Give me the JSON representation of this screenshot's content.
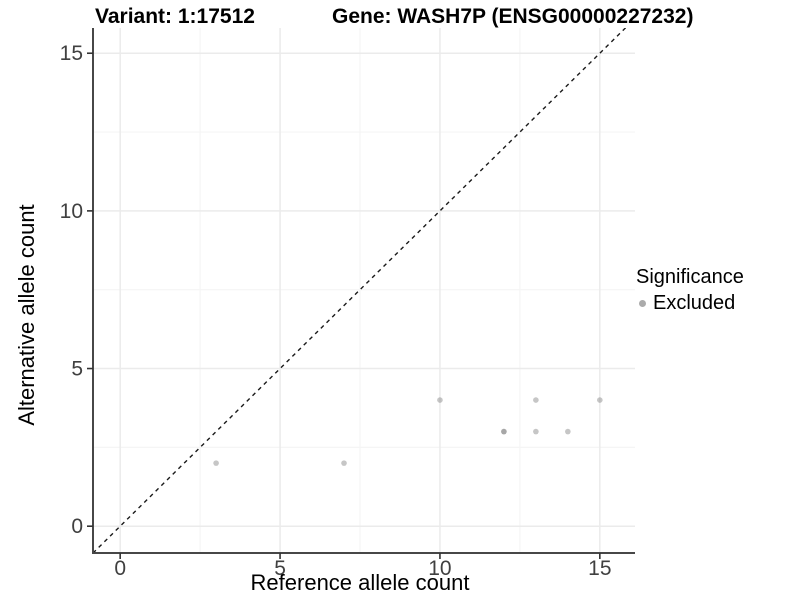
{
  "title": {
    "variant": "Variant: 1:17512",
    "gene": "Gene: WASH7P (ENSG00000227232)"
  },
  "legend": {
    "title": "Significance",
    "items": [
      {
        "label": "Excluded",
        "color": "#ababab"
      }
    ]
  },
  "colors": {
    "background": "#ffffff",
    "panel_background": "#ffffff",
    "grid_major": "#ebebeb",
    "grid_minor": "#f5f5f5",
    "axis_line": "#474747",
    "tick_mark": "#333333",
    "tick_label": "#404040",
    "axis_title": "#000000",
    "plot_title": "#000000",
    "point": "#808080",
    "identity_line": "#1a1a1a"
  },
  "chart_data": {
    "type": "scatter",
    "title": "Variant: 1:17512    Gene: WASH7P (ENSG00000227232)",
    "xlabel": "Reference allele count",
    "ylabel": "Alternative allele count",
    "xlim": [
      -0.85,
      16.1
    ],
    "ylim": [
      -0.85,
      15.8
    ],
    "x_ticks": [
      0,
      5,
      10,
      15
    ],
    "y_ticks": [
      0,
      5,
      10,
      15
    ],
    "x_minor_ticks": [
      2.5,
      7.5,
      12.5
    ],
    "y_minor_ticks": [
      2.5,
      7.5,
      12.5
    ],
    "grid": true,
    "legend_position": "right",
    "series": [
      {
        "name": "Excluded",
        "point_alpha": 0.45,
        "points": [
          [
            3,
            2
          ],
          [
            7,
            2
          ],
          [
            10,
            4
          ],
          [
            12,
            3
          ],
          [
            12,
            3
          ],
          [
            13,
            3
          ],
          [
            13,
            4
          ],
          [
            14,
            3
          ],
          [
            15,
            4
          ]
        ],
        "note": "point (12,3) appears darker due to two overplotted points"
      }
    ],
    "reference_line": {
      "type": "identity",
      "equation": "y = x",
      "style": "dashed"
    }
  }
}
